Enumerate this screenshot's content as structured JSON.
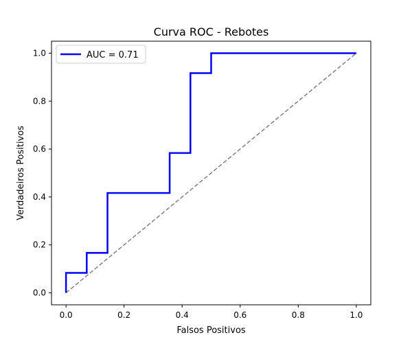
{
  "chart_data": {
    "type": "line",
    "title": "Curva ROC - Rebotes",
    "xlabel": "Falsos Positivos",
    "ylabel": "Verdadeiros Positivos",
    "xlim": [
      -0.05,
      1.05
    ],
    "ylim": [
      -0.05,
      1.05
    ],
    "xticks": [
      0.0,
      0.2,
      0.4,
      0.6,
      0.8,
      1.0
    ],
    "yticks": [
      0.0,
      0.2,
      0.4,
      0.6,
      0.8,
      1.0
    ],
    "tick_labels_x": [
      "0.0",
      "0.2",
      "0.4",
      "0.6",
      "0.8",
      "1.0"
    ],
    "tick_labels_y": [
      "0.0",
      "0.2",
      "0.4",
      "0.6",
      "0.8",
      "1.0"
    ],
    "grid": false,
    "legend_placement": "upper-left",
    "series": [
      {
        "name": "AUC = 0.71",
        "color": "#0000ff",
        "style": "solid",
        "x": [
          0.0,
          0.0,
          0.0714,
          0.0714,
          0.1429,
          0.1429,
          0.3571,
          0.3571,
          0.4286,
          0.4286,
          0.5,
          0.5,
          1.0
        ],
        "y": [
          0.0,
          0.0833,
          0.0833,
          0.1667,
          0.1667,
          0.4167,
          0.4167,
          0.5833,
          0.5833,
          0.9167,
          0.9167,
          1.0,
          1.0
        ]
      },
      {
        "color": "#808080",
        "style": "dashed",
        "x": [
          0.0,
          1.0
        ],
        "y": [
          0.0,
          1.0
        ]
      }
    ]
  }
}
